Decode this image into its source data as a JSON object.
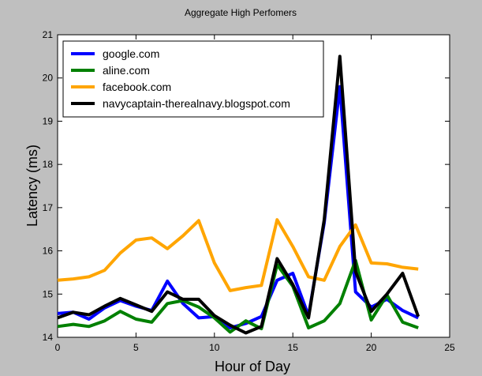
{
  "chart_data": {
    "type": "line",
    "title": "Aggregate High Perfomers",
    "xlabel": "Hour of Day",
    "ylabel": "Latency (ms)",
    "xlim": [
      0,
      25
    ],
    "ylim": [
      14,
      21
    ],
    "xticks": [
      0,
      5,
      10,
      15,
      20,
      25
    ],
    "yticks": [
      14,
      15,
      16,
      17,
      18,
      19,
      20,
      21
    ],
    "legend_position": "top-left",
    "grid": false,
    "x": [
      0,
      1,
      2,
      3,
      4,
      5,
      6,
      7,
      8,
      9,
      10,
      11,
      12,
      13,
      14,
      15,
      16,
      17,
      18,
      19,
      20,
      21,
      22,
      23
    ],
    "series": [
      {
        "name": "google.com",
        "color": "#0000ff",
        "values": [
          14.55,
          14.58,
          14.42,
          14.68,
          14.85,
          14.72,
          14.62,
          15.3,
          14.78,
          14.45,
          14.48,
          14.22,
          14.32,
          14.48,
          15.32,
          15.48,
          14.5,
          16.65,
          19.8,
          15.05,
          14.7,
          14.88,
          14.62,
          14.45
        ]
      },
      {
        "name": "aline.com",
        "color": "#008000",
        "values": [
          14.25,
          14.3,
          14.25,
          14.38,
          14.6,
          14.42,
          14.35,
          14.78,
          14.85,
          14.7,
          14.45,
          14.12,
          14.38,
          14.2,
          15.68,
          15.18,
          14.22,
          14.38,
          14.78,
          15.78,
          14.4,
          14.98,
          14.35,
          14.22
        ]
      },
      {
        "name": "facebook.com",
        "color": "#ffa500",
        "values": [
          15.32,
          15.35,
          15.4,
          15.55,
          15.95,
          16.25,
          16.3,
          16.05,
          16.35,
          16.7,
          15.72,
          15.08,
          15.15,
          15.2,
          16.72,
          16.1,
          15.4,
          15.32,
          16.1,
          16.6,
          15.72,
          15.7,
          15.62,
          15.58
        ]
      },
      {
        "name": "navycaptain-therealnavy.blogspot.com",
        "color": "#000000",
        "values": [
          14.45,
          14.58,
          14.52,
          14.72,
          14.9,
          14.75,
          14.6,
          15.05,
          14.88,
          14.88,
          14.5,
          14.28,
          14.1,
          14.25,
          15.82,
          15.22,
          14.45,
          16.72,
          20.5,
          15.52,
          14.6,
          15.0,
          15.48,
          14.48
        ]
      }
    ]
  }
}
